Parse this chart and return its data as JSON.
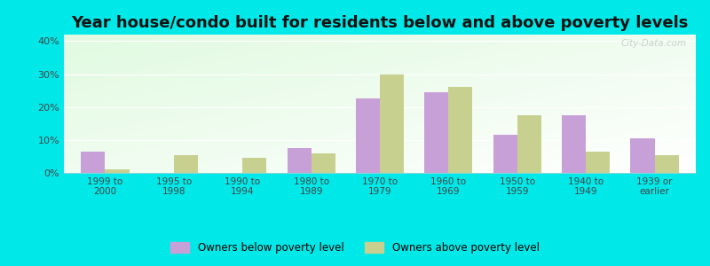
{
  "title": "Year house/condo built for residents below and above poverty levels",
  "categories": [
    "1999 to\n2000",
    "1995 to\n1998",
    "1990 to\n1994",
    "1980 to\n1989",
    "1970 to\n1979",
    "1960 to\n1969",
    "1950 to\n1959",
    "1940 to\n1949",
    "1939 or\nearlier"
  ],
  "below_poverty": [
    6.5,
    0.0,
    0.0,
    7.5,
    22.5,
    24.5,
    11.5,
    17.5,
    10.5
  ],
  "above_poverty": [
    1.0,
    5.5,
    4.5,
    6.0,
    30.0,
    26.0,
    17.5,
    6.5,
    5.5
  ],
  "color_below": "#c8a0d8",
  "color_above": "#c8d090",
  "ylim": [
    0,
    42
  ],
  "yticks": [
    0,
    10,
    20,
    30,
    40
  ],
  "ytick_labels": [
    "0%",
    "10%",
    "20%",
    "30%",
    "40%"
  ],
  "legend_below": "Owners below poverty level",
  "legend_above": "Owners above poverty level",
  "outer_bg": "#00e8e8",
  "title_fontsize": 13,
  "bar_width": 0.35,
  "watermark": "City-Data.com"
}
